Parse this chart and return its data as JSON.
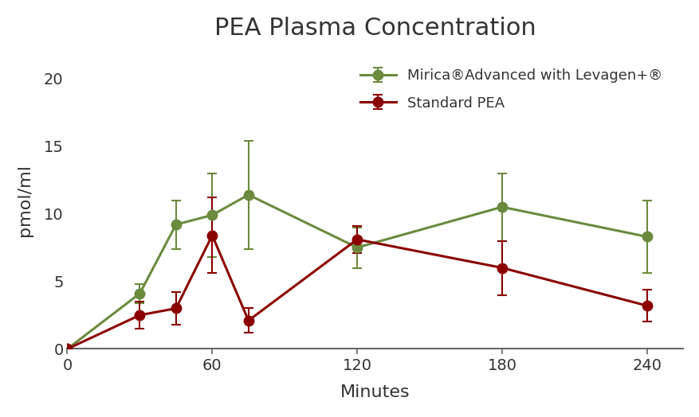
{
  "title": "PEA Plasma Concentration",
  "xlabel": "Minutes",
  "ylabel": "pmol/ml",
  "mirica_x": [
    0,
    30,
    45,
    60,
    75,
    120,
    180,
    240
  ],
  "mirica_y": [
    0.0,
    4.1,
    9.2,
    9.9,
    11.4,
    7.5,
    10.5,
    8.3
  ],
  "mirica_yerr": [
    0.0,
    0.7,
    1.8,
    3.1,
    4.0,
    1.5,
    2.5,
    2.7
  ],
  "standard_x": [
    0,
    30,
    45,
    60,
    75,
    120,
    180,
    240
  ],
  "standard_y": [
    0.0,
    2.5,
    3.0,
    8.4,
    2.1,
    8.1,
    6.0,
    3.2
  ],
  "standard_yerr": [
    0.0,
    1.0,
    1.2,
    2.8,
    0.9,
    1.0,
    2.0,
    1.2
  ],
  "mirica_color": "#6b8a3e",
  "standard_color": "#8b0000",
  "mirica_label": "Mirica®Advanced with Levagen+®",
  "standard_label": "Standard PEA",
  "xlim": [
    0,
    255
  ],
  "ylim": [
    0,
    22
  ],
  "xticks": [
    0,
    60,
    120,
    180,
    240
  ],
  "xticklabels": [
    "0",
    "60",
    "120",
    "180",
    "240"
  ],
  "yticks": [
    0,
    5,
    10,
    15,
    20
  ],
  "background_color": "#ffffff",
  "title_fontsize": 22,
  "label_fontsize": 16,
  "tick_fontsize": 14,
  "legend_fontsize": 13,
  "linewidth": 2.2,
  "markersize": 9,
  "capsize": 4
}
